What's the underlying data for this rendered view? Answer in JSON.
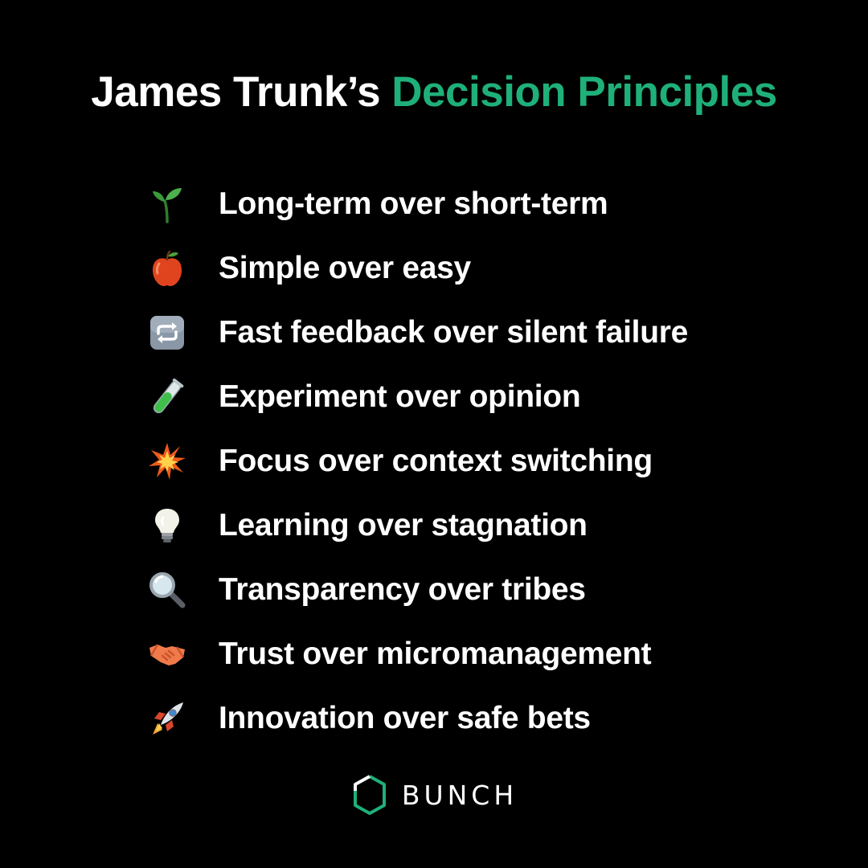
{
  "title": {
    "part1": "James Trunk’s",
    "part2": "Decision Principles",
    "accent_color": "#1fb07a"
  },
  "principles": [
    {
      "icon": "seedling-icon",
      "label": "Long-term over short-term"
    },
    {
      "icon": "apple-icon",
      "label": "Simple over easy"
    },
    {
      "icon": "repeat-arrows-icon",
      "label": "Fast feedback over silent failure"
    },
    {
      "icon": "test-tube-icon",
      "label": "Experiment over opinion"
    },
    {
      "icon": "collision-icon",
      "label": "Focus over context switching"
    },
    {
      "icon": "light-bulb-icon",
      "label": "Learning over stagnation"
    },
    {
      "icon": "magnifying-glass-icon",
      "label": "Transparency over tribes"
    },
    {
      "icon": "handshake-icon",
      "label": "Trust over micromanagement"
    },
    {
      "icon": "rocket-icon",
      "label": "Innovation over safe bets"
    }
  ],
  "brand": {
    "name": "BUNCH",
    "logo_color": "#1fb07a"
  }
}
